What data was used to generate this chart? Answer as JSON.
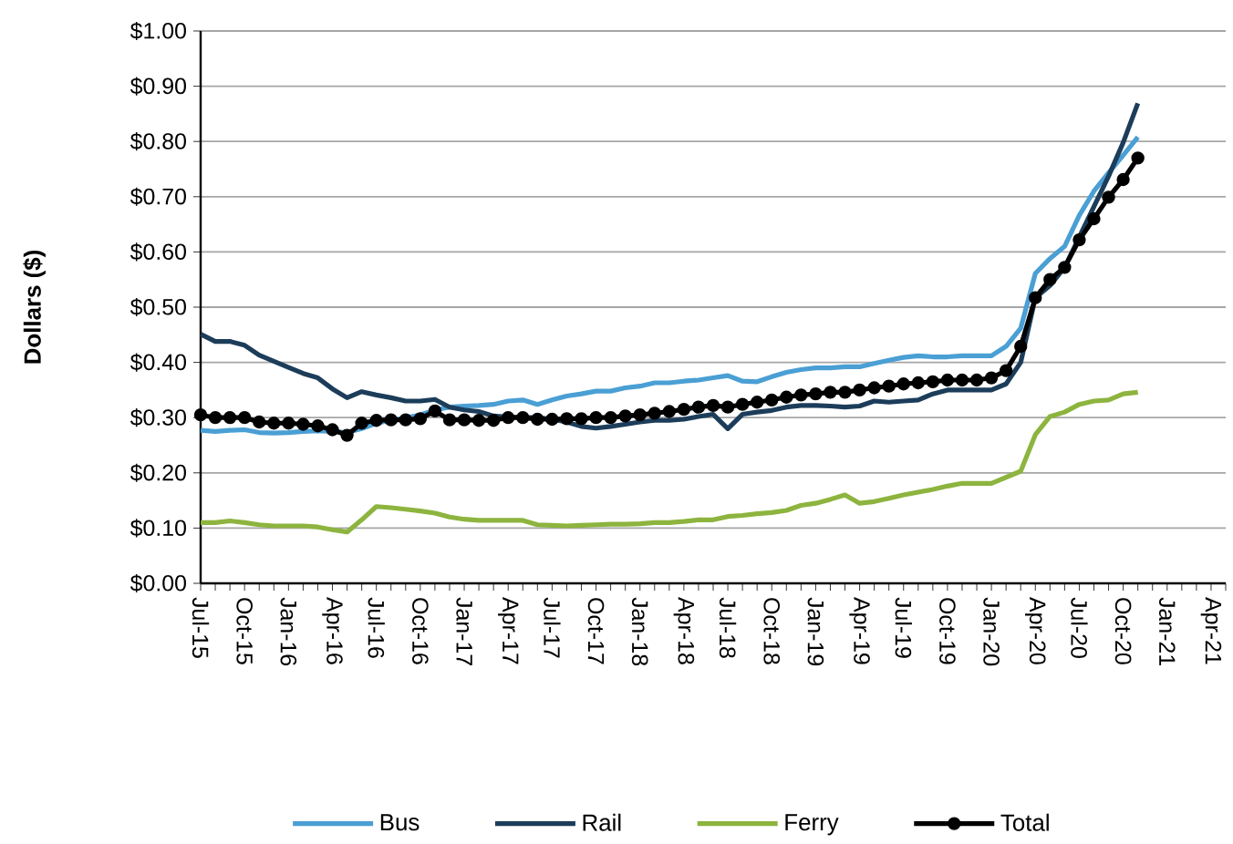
{
  "chart_data": {
    "type": "line",
    "ylabel": "Dollars ($)",
    "categories": [
      "Jul-15",
      null,
      null,
      "Oct-15",
      null,
      null,
      "Jan-16",
      null,
      null,
      "Apr-16",
      null,
      null,
      "Jul-16",
      null,
      null,
      "Oct-16",
      null,
      null,
      "Jan-17",
      null,
      null,
      "Apr-17",
      null,
      null,
      "Jul-17",
      null,
      null,
      "Oct-17",
      null,
      null,
      "Jan-18",
      null,
      null,
      "Apr-18",
      null,
      null,
      "Jul-18",
      null,
      null,
      "Oct-18",
      null,
      null,
      "Jan-19",
      null,
      null,
      "Apr-19",
      null,
      null,
      "Jul-19",
      null,
      null,
      "Oct-19",
      null,
      null,
      "Jan-20",
      null,
      null,
      "Apr-20",
      null,
      null,
      "Jul-20",
      null,
      null,
      "Oct-20",
      null,
      null,
      "Jan-21",
      null,
      null,
      "Apr-21",
      null
    ],
    "ylim": [
      0,
      1
    ],
    "yticks": [
      {
        "value": 0,
        "label": "$0.00"
      },
      {
        "value": 0.1,
        "label": "$0.10"
      },
      {
        "value": 0.2,
        "label": "$0.20"
      },
      {
        "value": 0.3,
        "label": "$0.30"
      },
      {
        "value": 0.4,
        "label": "$0.40"
      },
      {
        "value": 0.5,
        "label": "$0.50"
      },
      {
        "value": 0.6,
        "label": "$0.60"
      },
      {
        "value": 0.7,
        "label": "$0.70"
      },
      {
        "value": 0.8,
        "label": "$0.80"
      },
      {
        "value": 0.9,
        "label": "$0.90"
      },
      {
        "value": 1,
        "label": "$1.00"
      }
    ],
    "grid": "y",
    "legend": "bottom",
    "marker": "none",
    "line_style": "solid",
    "series": [
      {
        "name": "Bus",
        "color": "#4a9fd4",
        "values": [
          0.277,
          0.275,
          0.277,
          0.278,
          0.273,
          0.272,
          0.273,
          0.275,
          0.276,
          0.275,
          0.273,
          0.28,
          0.29,
          0.295,
          0.3,
          0.305,
          0.314,
          0.319,
          0.321,
          0.322,
          0.324,
          0.33,
          0.332,
          0.324,
          0.332,
          0.339,
          0.343,
          0.348,
          0.348,
          0.354,
          0.357,
          0.363,
          0.363,
          0.366,
          0.368,
          0.372,
          0.376,
          0.366,
          0.365,
          0.374,
          0.382,
          0.387,
          0.39,
          0.39,
          0.392,
          0.392,
          0.398,
          0.404,
          0.409,
          0.412,
          0.41,
          0.41,
          0.412,
          0.412,
          0.412,
          0.429,
          0.462,
          0.561,
          0.588,
          0.61,
          0.666,
          0.71,
          0.743,
          0.775,
          0.808,
          null,
          null,
          null,
          null,
          null,
          null
        ]
      },
      {
        "name": "Rail",
        "color": "#1c3d5a",
        "values": [
          0.451,
          0.438,
          0.438,
          0.431,
          0.413,
          0.402,
          0.391,
          0.38,
          0.372,
          0.352,
          0.336,
          0.347,
          0.341,
          0.336,
          0.33,
          0.33,
          0.333,
          0.319,
          0.314,
          0.311,
          0.303,
          0.301,
          0.3,
          0.3,
          0.297,
          0.292,
          0.284,
          0.281,
          0.284,
          0.288,
          0.292,
          0.295,
          0.295,
          0.297,
          0.302,
          0.306,
          0.28,
          0.306,
          0.31,
          0.313,
          0.319,
          0.322,
          0.322,
          0.321,
          0.319,
          0.321,
          0.33,
          0.328,
          0.33,
          0.332,
          0.343,
          0.35,
          0.35,
          0.35,
          0.35,
          0.361,
          0.4,
          0.517,
          0.539,
          0.572,
          0.627,
          0.682,
          0.737,
          0.798,
          0.869,
          null,
          null,
          null,
          null,
          null,
          null
        ]
      },
      {
        "name": "Ferry",
        "color": "#8db43e",
        "values": [
          0.11,
          0.11,
          0.113,
          0.11,
          0.106,
          0.104,
          0.104,
          0.104,
          0.102,
          0.097,
          0.093,
          0.115,
          0.139,
          0.137,
          0.134,
          0.131,
          0.127,
          0.12,
          0.116,
          0.114,
          0.114,
          0.114,
          0.114,
          0.106,
          0.105,
          0.104,
          0.105,
          0.106,
          0.107,
          0.107,
          0.108,
          0.11,
          0.11,
          0.112,
          0.115,
          0.115,
          0.121,
          0.123,
          0.126,
          0.128,
          0.132,
          0.141,
          0.145,
          0.152,
          0.16,
          0.145,
          0.148,
          0.154,
          0.16,
          0.165,
          0.17,
          0.176,
          0.181,
          0.181,
          0.181,
          0.192,
          0.203,
          0.269,
          0.302,
          0.31,
          0.324,
          0.33,
          0.332,
          0.343,
          0.346,
          null,
          null,
          null,
          null,
          null,
          null
        ]
      },
      {
        "name": "Total",
        "color": "#000000",
        "marker": "circle",
        "values": [
          0.305,
          0.3,
          0.3,
          0.3,
          0.292,
          0.29,
          0.29,
          0.288,
          0.285,
          0.278,
          0.268,
          0.29,
          0.295,
          0.296,
          0.296,
          0.298,
          0.312,
          0.296,
          0.296,
          0.295,
          0.295,
          0.3,
          0.3,
          0.297,
          0.297,
          0.298,
          0.298,
          0.3,
          0.3,
          0.303,
          0.305,
          0.308,
          0.311,
          0.315,
          0.319,
          0.322,
          0.319,
          0.324,
          0.328,
          0.332,
          0.337,
          0.341,
          0.343,
          0.346,
          0.346,
          0.35,
          0.354,
          0.357,
          0.361,
          0.363,
          0.365,
          0.368,
          0.368,
          0.368,
          0.372,
          0.385,
          0.429,
          0.517,
          0.55,
          0.572,
          0.622,
          0.66,
          0.699,
          0.731,
          0.77,
          null,
          null,
          null,
          null,
          null,
          null
        ]
      }
    ]
  }
}
